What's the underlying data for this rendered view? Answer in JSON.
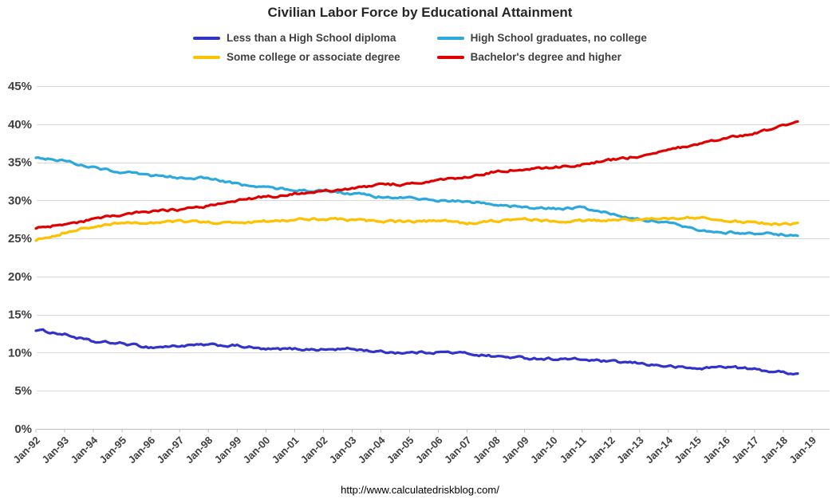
{
  "footer": {
    "url_text": "http://www.calculatedriskblog.com/"
  },
  "chart_data": {
    "type": "line",
    "title": "Civilian Labor Force by Educational Attainment",
    "xlabel": "",
    "ylabel": "",
    "ylim": [
      0,
      45
    ],
    "grid": true,
    "legend_position": "top",
    "y_ticks": [
      0,
      5,
      10,
      15,
      20,
      25,
      30,
      35,
      40,
      45
    ],
    "y_tick_suffix": "%",
    "x_tick_labels": [
      "Jan-92",
      "Jan-93",
      "Jan-94",
      "Jan-95",
      "Jan-96",
      "Jan-97",
      "Jan-98",
      "Jan-99",
      "Jan-00",
      "Jan-01",
      "Jan-02",
      "Jan-03",
      "Jan-04",
      "Jan-05",
      "Jan-06",
      "Jan-07",
      "Jan-08",
      "Jan-09",
      "Jan-10",
      "Jan-11",
      "Jan-12",
      "Jan-13",
      "Jan-14",
      "Jan-15",
      "Jan-16",
      "Jan-17",
      "Jan-18",
      "Jan-19"
    ],
    "x_anchor_times": [
      1992,
      1993,
      1994,
      1995,
      1996,
      1997,
      1998,
      1999,
      2000,
      2001,
      2002,
      2003,
      2004,
      2005,
      2006,
      2007,
      2008,
      2009,
      2010,
      2011,
      2012,
      2013,
      2014,
      2015,
      2016,
      2017,
      2018,
      2018.5
    ],
    "x_range": [
      1992,
      2019
    ],
    "series": [
      {
        "name": "Less than a High School diploma",
        "color": "#3333CC",
        "values": [
          13.0,
          12.4,
          11.4,
          11.2,
          10.7,
          10.9,
          11.0,
          10.9,
          10.4,
          10.5,
          10.4,
          10.5,
          10.1,
          10.0,
          10.1,
          9.9,
          9.5,
          9.3,
          9.2,
          9.1,
          8.8,
          8.6,
          8.2,
          7.9,
          8.2,
          7.8,
          7.4,
          7.3
        ]
      },
      {
        "name": "High School graduates, no college",
        "color": "#2CA8DF",
        "values": [
          35.7,
          35.2,
          34.3,
          33.7,
          33.2,
          33.0,
          32.9,
          32.1,
          31.7,
          31.4,
          31.2,
          30.9,
          30.4,
          30.3,
          30.0,
          29.8,
          29.5,
          29.0,
          28.9,
          29.0,
          28.2,
          27.6,
          27.0,
          26.2,
          25.8,
          25.7,
          25.5,
          25.3
        ]
      },
      {
        "name": "Some college or associate degree",
        "color": "#FFC000",
        "values": [
          24.8,
          25.8,
          26.5,
          27.0,
          27.1,
          27.2,
          27.1,
          27.0,
          27.3,
          27.5,
          27.6,
          27.4,
          27.2,
          27.2,
          27.3,
          27.0,
          27.3,
          27.5,
          27.3,
          27.3,
          27.4,
          27.5,
          27.6,
          27.7,
          27.3,
          27.1,
          26.8,
          26.9
        ]
      },
      {
        "name": "Bachelor's degree and higher",
        "color": "#E00000",
        "values": [
          26.3,
          26.8,
          27.5,
          28.1,
          28.5,
          28.8,
          29.3,
          30.0,
          30.5,
          30.9,
          31.3,
          31.5,
          32.0,
          32.2,
          32.6,
          33.0,
          33.8,
          34.1,
          34.3,
          34.7,
          35.3,
          35.8,
          36.6,
          37.3,
          38.2,
          38.8,
          39.8,
          40.3
        ]
      }
    ]
  }
}
